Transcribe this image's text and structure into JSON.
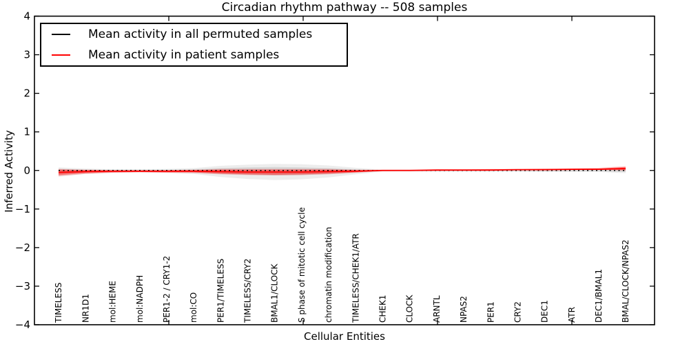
{
  "chart_data": {
    "type": "line",
    "title": "Circadian rhythm pathway -- 508 samples",
    "xlabel": "Cellular Entities",
    "ylabel": "Inferred Activity",
    "ylim": [
      -4,
      4
    ],
    "grid": false,
    "y_ticks": [
      "4",
      "3",
      "2",
      "1",
      "0",
      "−1",
      "−2",
      "−3",
      "−4"
    ],
    "categories": [
      "TIMELESS",
      "NR1D1",
      "mol:HEME",
      "mol:NADPH",
      "PER1-2 / CRY1-2",
      "mol:CO",
      "PER1/TIMELESS",
      "TIMELESS/CRY2",
      "BMAL1/CLOCK",
      "S phase of mitotic cell cycle",
      "chromatin modification",
      "TIMELESS/CHEK1/ATR",
      "CHEK1",
      "CLOCK",
      "ARNTL",
      "NPAS2",
      "PER1",
      "CRY2",
      "DEC1",
      "ATR",
      "DEC1/BMAL1",
      "BMAL/CLOCK/NPAS2"
    ],
    "series": [
      {
        "name": "Mean activity in all permuted samples",
        "color": "#000000",
        "line_style": "dotted",
        "values": [
          0,
          0,
          0,
          0,
          0,
          0,
          0,
          0,
          0,
          0,
          0,
          0,
          0,
          0,
          0,
          0,
          0,
          0,
          0,
          0,
          0,
          0
        ]
      },
      {
        "name": "Mean activity in patient samples",
        "color": "#ff0000",
        "line_style": "solid",
        "values": [
          -0.05,
          -0.03,
          -0.02,
          -0.02,
          -0.02,
          -0.02,
          -0.03,
          -0.04,
          -0.04,
          -0.04,
          -0.03,
          -0.02,
          0.0,
          0.0,
          0.01,
          0.01,
          0.01,
          0.02,
          0.02,
          0.03,
          0.03,
          0.05
        ]
      }
    ],
    "bands": [
      {
        "name": "permuted-envelope-outer",
        "color": "#999999",
        "opacity": 0.18,
        "upper": [
          0.08,
          0.05,
          0.03,
          0.03,
          0.04,
          0.06,
          0.12,
          0.15,
          0.17,
          0.16,
          0.13,
          0.07,
          0.02,
          0.02,
          0.02,
          0.02,
          0.02,
          0.02,
          0.03,
          0.03,
          0.03,
          0.05
        ],
        "lower": [
          -0.16,
          -0.09,
          -0.06,
          -0.05,
          -0.06,
          -0.09,
          -0.17,
          -0.22,
          -0.25,
          -0.23,
          -0.18,
          -0.1,
          -0.03,
          -0.03,
          -0.03,
          -0.03,
          -0.03,
          -0.03,
          -0.04,
          -0.04,
          -0.04,
          -0.07
        ]
      },
      {
        "name": "permuted-envelope-inner",
        "color": "#999999",
        "opacity": 0.28,
        "upper": [
          0.04,
          0.02,
          0.02,
          0.02,
          0.02,
          0.03,
          0.06,
          0.08,
          0.09,
          0.08,
          0.06,
          0.03,
          0.01,
          0.01,
          0.01,
          0.01,
          0.01,
          0.01,
          0.02,
          0.02,
          0.02,
          0.03
        ],
        "lower": [
          -0.08,
          -0.05,
          -0.03,
          -0.03,
          -0.03,
          -0.05,
          -0.09,
          -0.11,
          -0.13,
          -0.12,
          -0.09,
          -0.05,
          -0.02,
          -0.02,
          -0.02,
          -0.02,
          -0.02,
          -0.02,
          -0.02,
          -0.02,
          -0.02,
          -0.04
        ]
      },
      {
        "name": "patient-envelope-outer",
        "color": "#ff0000",
        "opacity": 0.2,
        "upper": [
          0.04,
          0.02,
          0.01,
          0.01,
          0.01,
          0.02,
          0.04,
          0.04,
          0.04,
          0.04,
          0.04,
          0.02,
          0.02,
          0.02,
          0.03,
          0.03,
          0.04,
          0.04,
          0.05,
          0.05,
          0.07,
          0.11
        ],
        "lower": [
          -0.15,
          -0.09,
          -0.06,
          -0.05,
          -0.06,
          -0.07,
          -0.1,
          -0.12,
          -0.13,
          -0.12,
          -0.1,
          -0.06,
          -0.02,
          -0.01,
          -0.01,
          0.0,
          0.0,
          0.01,
          0.01,
          0.01,
          0.02,
          -0.01
        ]
      },
      {
        "name": "patient-envelope-inner",
        "color": "#ff0000",
        "opacity": 0.4,
        "upper": [
          0.02,
          0.01,
          0.0,
          0.0,
          0.0,
          0.01,
          0.02,
          0.02,
          0.02,
          0.02,
          0.02,
          0.01,
          0.01,
          0.01,
          0.02,
          0.02,
          0.03,
          0.03,
          0.04,
          0.04,
          0.05,
          0.09
        ],
        "lower": [
          -0.12,
          -0.07,
          -0.05,
          -0.04,
          -0.05,
          -0.05,
          -0.08,
          -0.1,
          -0.11,
          -0.1,
          -0.08,
          -0.05,
          -0.01,
          -0.01,
          0.0,
          0.0,
          0.01,
          0.01,
          0.02,
          0.02,
          0.02,
          0.01
        ]
      }
    ],
    "legend": {
      "position": "upper left",
      "entries": [
        "Mean activity in all permuted samples",
        "Mean activity in patient samples"
      ]
    }
  }
}
